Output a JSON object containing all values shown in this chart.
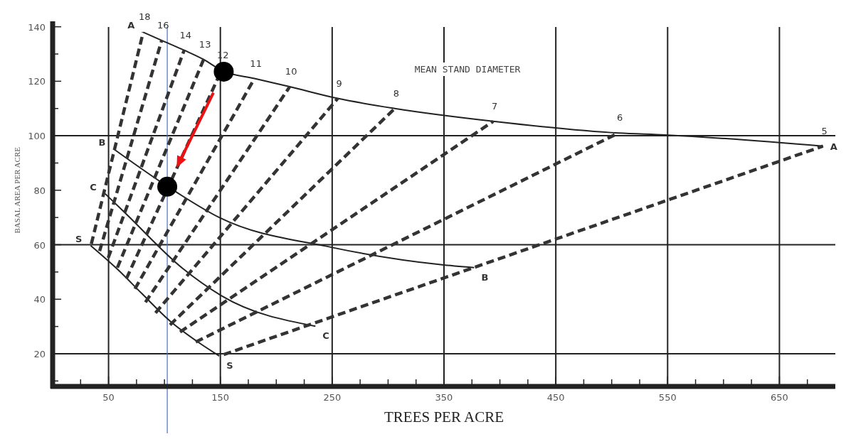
{
  "chart_data": {
    "type": "line",
    "xlabel": "TREES PER ACRE",
    "ylabel": "BASAL AREA PER ACRE",
    "xlim": [
      0,
      700
    ],
    "ylim": [
      8,
      142
    ],
    "xticks": [
      {
        "value": 25,
        "label": null
      },
      50,
      {
        "value": 75,
        "label": null
      },
      {
        "value": 100,
        "label": null
      },
      {
        "value": 125,
        "label": null
      },
      150,
      {
        "value": 175,
        "label": null
      },
      {
        "value": 200,
        "label": null
      },
      {
        "value": 225,
        "label": null
      },
      250,
      {
        "value": 275,
        "label": null
      },
      {
        "value": 300,
        "label": null
      },
      {
        "value": 325,
        "label": null
      },
      350,
      {
        "value": 375,
        "label": null
      },
      {
        "value": 400,
        "label": null
      },
      {
        "value": 425,
        "label": null
      },
      450,
      {
        "value": 475,
        "label": null
      },
      {
        "value": 500,
        "label": null
      },
      {
        "value": 525,
        "label": null
      },
      550,
      {
        "value": 575,
        "label": null
      },
      {
        "value": 600,
        "label": null
      },
      {
        "value": 625,
        "label": null
      },
      650,
      {
        "value": 675,
        "label": null
      }
    ],
    "yticks": [
      {
        "value": 10,
        "label": null
      },
      20,
      {
        "value": 30,
        "label": null
      },
      40,
      {
        "value": 50,
        "label": null
      },
      60,
      {
        "value": 70,
        "label": null
      },
      80,
      {
        "value": 90,
        "label": null
      },
      100,
      {
        "value": 110,
        "label": null
      },
      120,
      {
        "value": 130,
        "label": null
      },
      140
    ],
    "line_style": "solid",
    "ref_lines": [
      {
        "axis": "y",
        "value": 20,
        "color": "#222222"
      },
      {
        "axis": "y",
        "value": 60,
        "color": "#222222"
      },
      {
        "axis": "y",
        "value": 100,
        "color": "#222222"
      },
      {
        "axis": "x",
        "value": 50,
        "color": "#222222"
      },
      {
        "axis": "x",
        "value": 150,
        "color": "#222222"
      },
      {
        "axis": "x",
        "value": 250,
        "color": "#222222"
      },
      {
        "axis": "x",
        "value": 350,
        "color": "#222222"
      },
      {
        "axis": "x",
        "value": 450,
        "color": "#222222"
      },
      {
        "axis": "x",
        "value": 550,
        "color": "#222222"
      },
      {
        "axis": "x",
        "value": 650,
        "color": "#222222"
      },
      {
        "axis": "x",
        "value": 102.5,
        "color": "#4472c4"
      }
    ],
    "annotations": [
      "MEAN STAND DIAMETER"
    ],
    "series": [
      {
        "name": "A",
        "color": "#222222",
        "x": [
          81,
          97.5,
          117.6,
          135,
          151,
          180.5,
          212,
          255,
          306,
          394,
          506,
          548,
          689
        ],
        "values": [
          138,
          135,
          131.4,
          128,
          124,
          121,
          118,
          113.7,
          110,
          105.3,
          101,
          100.3,
          96.2
        ]
      },
      {
        "name": "B",
        "color": "#222222",
        "x": [
          55,
          105,
          149,
          250,
          347,
          377
        ],
        "values": [
          95,
          80.8,
          70,
          59,
          52.7,
          51.6
        ]
      },
      {
        "name": "C",
        "color": "#222222",
        "x": [
          47,
          65,
          116,
          151,
          235
        ],
        "values": [
          78.7,
          71.6,
          51.4,
          41.3,
          30.1
        ]
      },
      {
        "name": "S",
        "color": "#222222",
        "x": [
          34,
          58,
          80,
          105,
          130,
          149
        ],
        "values": [
          59.7,
          51,
          42,
          32,
          24.3,
          19.2
        ]
      },
      {
        "name": "18",
        "color": "#333333",
        "line_style": "dashed",
        "x": [
          34.6,
          81
        ],
        "values": [
          60.3,
          138
        ]
      },
      {
        "name": "16",
        "color": "#333333",
        "line_style": "dashed",
        "x": [
          42,
          97.5
        ],
        "values": [
          57.7,
          135
        ]
      },
      {
        "name": "14",
        "color": "#333333",
        "line_style": "dashed",
        "x": [
          49.7,
          117.6
        ],
        "values": [
          55.2,
          131.4
        ]
      },
      {
        "name": "13",
        "color": "#333333",
        "line_style": "dashed",
        "x": [
          57.9,
          135
        ],
        "values": [
          51.6,
          128
        ]
      },
      {
        "name": "12",
        "color": "#333333",
        "line_style": "dashed",
        "x": [
          66,
          151
        ],
        "values": [
          47.6,
          124
        ]
      },
      {
        "name": "11",
        "color": "#333333",
        "line_style": "dashed",
        "x": [
          73.6,
          180.5
        ],
        "values": [
          43.8,
          121
        ]
      },
      {
        "name": "10",
        "color": "#333333",
        "line_style": "dashed",
        "x": [
          83,
          212
        ],
        "values": [
          38.9,
          118
        ]
      },
      {
        "name": "9",
        "color": "#333333",
        "line_style": "dashed",
        "x": [
          92,
          255
        ],
        "values": [
          35,
          113.7
        ]
      },
      {
        "name": "8",
        "color": "#333333",
        "line_style": "dashed",
        "x": [
          105,
          306
        ],
        "values": [
          30.6,
          110
        ]
      },
      {
        "name": "7",
        "color": "#333333",
        "line_style": "dashed",
        "x": [
          114,
          394
        ],
        "values": [
          28,
          105.3
        ]
      },
      {
        "name": "6",
        "color": "#333333",
        "line_style": "dashed",
        "x": [
          128,
          506
        ],
        "values": [
          24.3,
          101
        ]
      },
      {
        "name": "5",
        "color": "#333333",
        "line_style": "dashed",
        "x": [
          153,
          689
        ],
        "values": [
          19.7,
          96.2
        ]
      },
      {
        "type": "scatter",
        "marker": "circle",
        "color": "#000000",
        "x": [
          153,
          102.5
        ],
        "values": [
          123.5,
          81.3
        ]
      }
    ]
  }
}
